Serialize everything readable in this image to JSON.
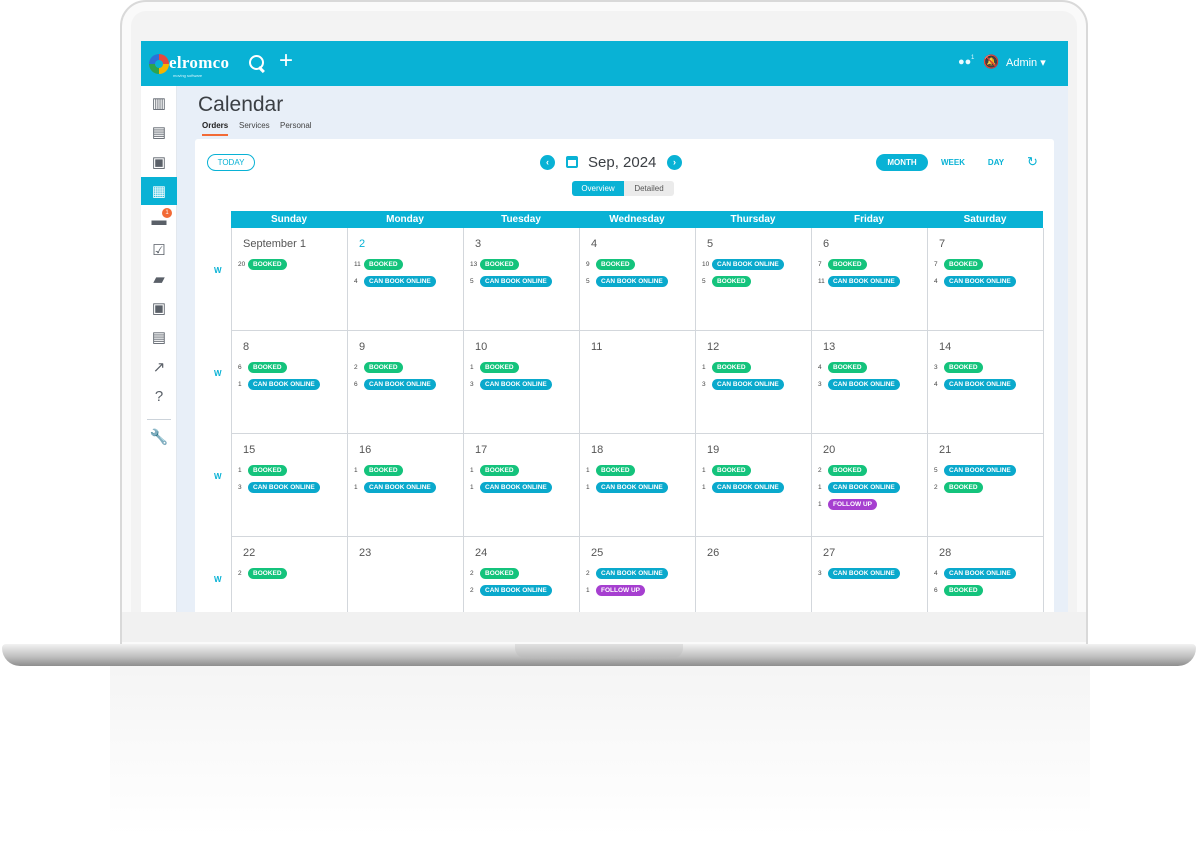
{
  "app": {
    "logo_text": "elromco",
    "logo_sub": "moving software",
    "user_count": "1",
    "admin_label": "Admin ▾"
  },
  "icons": {
    "search": "search-icon",
    "add": "plus-icon",
    "users": "users-icon",
    "bell": "bell-off-icon",
    "refresh": "refresh-icon"
  },
  "colors": {
    "accent": "#09b2d5",
    "booked": "#14c37c",
    "can_book_online": "#0aa9cc",
    "follow_up": "#a63fd0",
    "tab_underline": "#f26a36"
  },
  "sidebar": {
    "items": [
      {
        "icon": "chart-bar-icon",
        "glyph": "▥"
      },
      {
        "icon": "clipboard-icon",
        "glyph": "▤"
      },
      {
        "icon": "contacts-folder-icon",
        "glyph": "▣"
      },
      {
        "icon": "calendar-icon",
        "glyph": "▦",
        "active": true
      },
      {
        "icon": "chat-icon",
        "glyph": "▬",
        "badge": "1"
      },
      {
        "icon": "checkbox-icon",
        "glyph": "☑"
      },
      {
        "icon": "truck-icon",
        "glyph": "▰"
      },
      {
        "icon": "wallet-icon",
        "glyph": "▣"
      },
      {
        "icon": "document-icon",
        "glyph": "▤"
      },
      {
        "icon": "trend-icon",
        "glyph": "↗"
      },
      {
        "icon": "help-icon",
        "glyph": "?"
      },
      {
        "icon": "wrench-icon",
        "glyph": "🔧"
      }
    ]
  },
  "page": {
    "title": "Calendar",
    "tabs": [
      "Orders",
      "Services",
      "Personal"
    ]
  },
  "toolbar": {
    "today": "TODAY",
    "prev": "‹",
    "next": "›",
    "month_title": "Sep, 2024",
    "view_overview": "Overview",
    "view_detailed": "Detailed",
    "range_month": "MONTH",
    "range_week": "WEEK",
    "range_day": "DAY"
  },
  "calendar": {
    "weekdays": [
      "Sunday",
      "Monday",
      "Tuesday",
      "Wednesday",
      "Thursday",
      "Friday",
      "Saturday"
    ],
    "week_marker": "W",
    "weeks": [
      [
        {
          "label": "September 1",
          "events": [
            {
              "n": "20",
              "type": "booked",
              "text": "BOOKED"
            }
          ]
        },
        {
          "label": "2",
          "today": true,
          "events": [
            {
              "n": "11",
              "type": "booked",
              "text": "BOOKED"
            },
            {
              "n": "4",
              "type": "can",
              "text": "CAN BOOK ONLINE"
            }
          ]
        },
        {
          "label": "3",
          "events": [
            {
              "n": "13",
              "type": "booked",
              "text": "BOOKED"
            },
            {
              "n": "5",
              "type": "can",
              "text": "CAN BOOK ONLINE"
            }
          ]
        },
        {
          "label": "4",
          "events": [
            {
              "n": "9",
              "type": "booked",
              "text": "BOOKED"
            },
            {
              "n": "5",
              "type": "can",
              "text": "CAN BOOK ONLINE"
            }
          ]
        },
        {
          "label": "5",
          "events": [
            {
              "n": "10",
              "type": "can",
              "text": "CAN BOOK ONLINE"
            },
            {
              "n": "5",
              "type": "booked",
              "text": "BOOKED"
            }
          ]
        },
        {
          "label": "6",
          "events": [
            {
              "n": "7",
              "type": "booked",
              "text": "BOOKED"
            },
            {
              "n": "11",
              "type": "can",
              "text": "CAN BOOK ONLINE"
            }
          ]
        },
        {
          "label": "7",
          "events": [
            {
              "n": "7",
              "type": "booked",
              "text": "BOOKED"
            },
            {
              "n": "4",
              "type": "can",
              "text": "CAN BOOK ONLINE"
            }
          ]
        }
      ],
      [
        {
          "label": "8",
          "events": [
            {
              "n": "6",
              "type": "booked",
              "text": "BOOKED"
            },
            {
              "n": "1",
              "type": "can",
              "text": "CAN BOOK ONLINE"
            }
          ]
        },
        {
          "label": "9",
          "events": [
            {
              "n": "2",
              "type": "booked",
              "text": "BOOKED"
            },
            {
              "n": "6",
              "type": "can",
              "text": "CAN BOOK ONLINE"
            }
          ]
        },
        {
          "label": "10",
          "events": [
            {
              "n": "1",
              "type": "booked",
              "text": "BOOKED"
            },
            {
              "n": "3",
              "type": "can",
              "text": "CAN BOOK ONLINE"
            }
          ]
        },
        {
          "label": "11",
          "events": []
        },
        {
          "label": "12",
          "events": [
            {
              "n": "1",
              "type": "booked",
              "text": "BOOKED"
            },
            {
              "n": "3",
              "type": "can",
              "text": "CAN BOOK ONLINE"
            }
          ]
        },
        {
          "label": "13",
          "events": [
            {
              "n": "4",
              "type": "booked",
              "text": "BOOKED"
            },
            {
              "n": "3",
              "type": "can",
              "text": "CAN BOOK ONLINE"
            }
          ]
        },
        {
          "label": "14",
          "events": [
            {
              "n": "3",
              "type": "booked",
              "text": "BOOKED"
            },
            {
              "n": "4",
              "type": "can",
              "text": "CAN BOOK ONLINE"
            }
          ]
        }
      ],
      [
        {
          "label": "15",
          "events": [
            {
              "n": "1",
              "type": "booked",
              "text": "BOOKED"
            },
            {
              "n": "3",
              "type": "can",
              "text": "CAN BOOK ONLINE"
            }
          ]
        },
        {
          "label": "16",
          "events": [
            {
              "n": "1",
              "type": "booked",
              "text": "BOOKED"
            },
            {
              "n": "1",
              "type": "can",
              "text": "CAN BOOK ONLINE"
            }
          ]
        },
        {
          "label": "17",
          "events": [
            {
              "n": "1",
              "type": "booked",
              "text": "BOOKED"
            },
            {
              "n": "1",
              "type": "can",
              "text": "CAN BOOK ONLINE"
            }
          ]
        },
        {
          "label": "18",
          "events": [
            {
              "n": "1",
              "type": "booked",
              "text": "BOOKED"
            },
            {
              "n": "1",
              "type": "can",
              "text": "CAN BOOK ONLINE"
            }
          ]
        },
        {
          "label": "19",
          "events": [
            {
              "n": "1",
              "type": "booked",
              "text": "BOOKED"
            },
            {
              "n": "1",
              "type": "can",
              "text": "CAN BOOK ONLINE"
            }
          ]
        },
        {
          "label": "20",
          "events": [
            {
              "n": "2",
              "type": "booked",
              "text": "BOOKED"
            },
            {
              "n": "1",
              "type": "can",
              "text": "CAN BOOK ONLINE"
            },
            {
              "n": "1",
              "type": "follow",
              "text": "FOLLOW UP"
            }
          ]
        },
        {
          "label": "21",
          "events": [
            {
              "n": "5",
              "type": "can",
              "text": "CAN BOOK ONLINE"
            },
            {
              "n": "2",
              "type": "booked",
              "text": "BOOKED"
            }
          ]
        }
      ],
      [
        {
          "label": "22",
          "events": [
            {
              "n": "2",
              "type": "booked",
              "text": "BOOKED"
            }
          ]
        },
        {
          "label": "23",
          "events": []
        },
        {
          "label": "24",
          "events": [
            {
              "n": "2",
              "type": "booked",
              "text": "BOOKED"
            },
            {
              "n": "2",
              "type": "can",
              "text": "CAN BOOK ONLINE"
            }
          ]
        },
        {
          "label": "25",
          "events": [
            {
              "n": "2",
              "type": "can",
              "text": "CAN BOOK ONLINE"
            },
            {
              "n": "1",
              "type": "follow",
              "text": "FOLLOW UP"
            }
          ]
        },
        {
          "label": "26",
          "events": []
        },
        {
          "label": "27",
          "events": [
            {
              "n": "3",
              "type": "can",
              "text": "CAN BOOK ONLINE"
            }
          ]
        },
        {
          "label": "28",
          "events": [
            {
              "n": "4",
              "type": "can",
              "text": "CAN BOOK ONLINE"
            },
            {
              "n": "6",
              "type": "booked",
              "text": "BOOKED"
            }
          ]
        }
      ]
    ]
  }
}
